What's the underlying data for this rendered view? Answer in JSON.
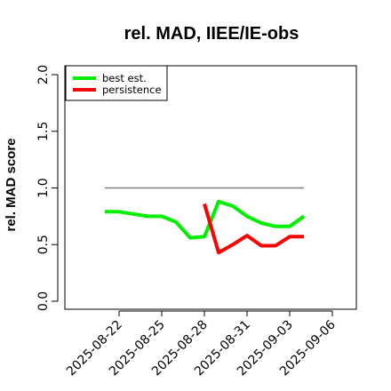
{
  "chart_data": {
    "type": "line",
    "title": "rel. MAD, IIEE/IE-obs",
    "xlabel": "",
    "ylabel": "rel. MAD score",
    "ylim": [
      0,
      2
    ],
    "yticks": [
      "0.0",
      "0.5",
      "1.0",
      "1.5",
      "2.0"
    ],
    "xlim": [
      "2025-08-19",
      "2025-09-06"
    ],
    "xticks": [
      "2025-08-22",
      "2025-08-25",
      "2025-08-28",
      "2025-08-31",
      "2025-09-03",
      "2025-09-06"
    ],
    "grid": false,
    "legend_position": "top-left",
    "reference_line": {
      "y": 1.0,
      "x_start": "2025-08-21",
      "x_end": "2025-09-04",
      "color": "#808080"
    },
    "series": [
      {
        "name": "best est.",
        "color": "#00ee00",
        "x": [
          "2025-08-21",
          "2025-08-22",
          "2025-08-23",
          "2025-08-24",
          "2025-08-25",
          "2025-08-26",
          "2025-08-27",
          "2025-08-28",
          "2025-08-29",
          "2025-08-30",
          "2025-08-31",
          "2025-09-01",
          "2025-09-02",
          "2025-09-03",
          "2025-09-04"
        ],
        "values": [
          0.79,
          0.79,
          0.77,
          0.75,
          0.75,
          0.7,
          0.56,
          0.57,
          0.88,
          0.84,
          0.75,
          0.69,
          0.66,
          0.66,
          0.75
        ]
      },
      {
        "name": "persistence",
        "color": "#ff0000",
        "x": [
          "2025-08-28",
          "2025-08-29",
          "2025-08-30",
          "2025-08-31",
          "2025-09-01",
          "2025-09-02",
          "2025-09-03",
          "2025-09-04"
        ],
        "values": [
          0.86,
          0.43,
          0.5,
          0.58,
          0.49,
          0.49,
          0.57,
          0.57
        ]
      }
    ]
  }
}
